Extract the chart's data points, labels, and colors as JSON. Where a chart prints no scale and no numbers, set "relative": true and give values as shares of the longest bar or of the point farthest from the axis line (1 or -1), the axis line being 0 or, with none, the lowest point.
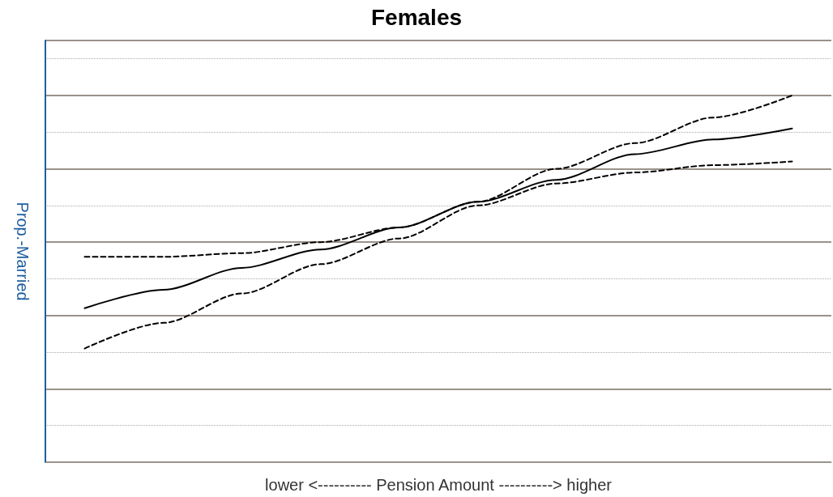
{
  "chart_data": {
    "type": "line",
    "title": "Females",
    "xlabel": "lower <---------- Pension Amount ----------> higher",
    "ylabel": "Prop.-Married",
    "categories": [
      null,
      null,
      null,
      null,
      null,
      null,
      null,
      null,
      null,
      null
    ],
    "relative": true,
    "grid": "y",
    "marker": "none",
    "series": [
      {
        "color": "#000000",
        "line_style": "solid",
        "values": [
          0.42,
          0.47,
          0.53,
          0.58,
          0.64,
          0.71,
          0.77,
          0.84,
          0.88,
          0.91
        ]
      },
      {
        "color": "#000000",
        "line_style": "dashed",
        "values": [
          0.56,
          0.56,
          0.57,
          0.6,
          0.64,
          0.71,
          0.8,
          0.87,
          0.94,
          1
        ]
      },
      {
        "color": "#000000",
        "line_style": "dashed",
        "values": [
          0.31,
          0.38,
          0.46,
          0.54,
          0.61,
          0.7,
          0.76,
          0.79,
          0.81,
          0.82
        ]
      }
    ]
  }
}
